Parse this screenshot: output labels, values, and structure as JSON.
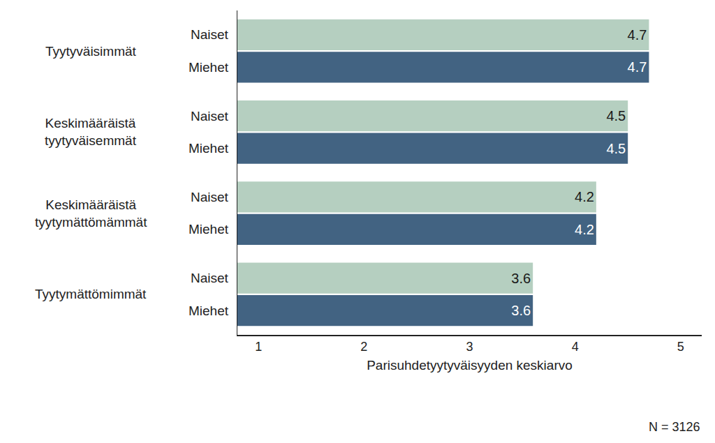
{
  "chart_data": {
    "type": "bar",
    "orientation": "horizontal",
    "categories": [
      "Tyytyväisimmät",
      "Keskimääräistä tyytyväisemmät",
      "Keskimääräistä tyytymättömämmät",
      "Tyytymättömimmät"
    ],
    "series": [
      {
        "name": "Naiset",
        "color": "#b5cfc0",
        "values": [
          4.7,
          4.5,
          4.2,
          3.6
        ]
      },
      {
        "name": "Miehet",
        "color": "#426382",
        "values": [
          4.7,
          4.5,
          4.2,
          3.6
        ]
      }
    ],
    "xlabel": "Parisuhdetyytyväisyyden keskiarvo",
    "xlim": [
      0.8,
      5.2
    ],
    "xticks": [
      1,
      2,
      3,
      4,
      5
    ],
    "grid": false,
    "data_labels": true,
    "note": "N = 3126"
  }
}
